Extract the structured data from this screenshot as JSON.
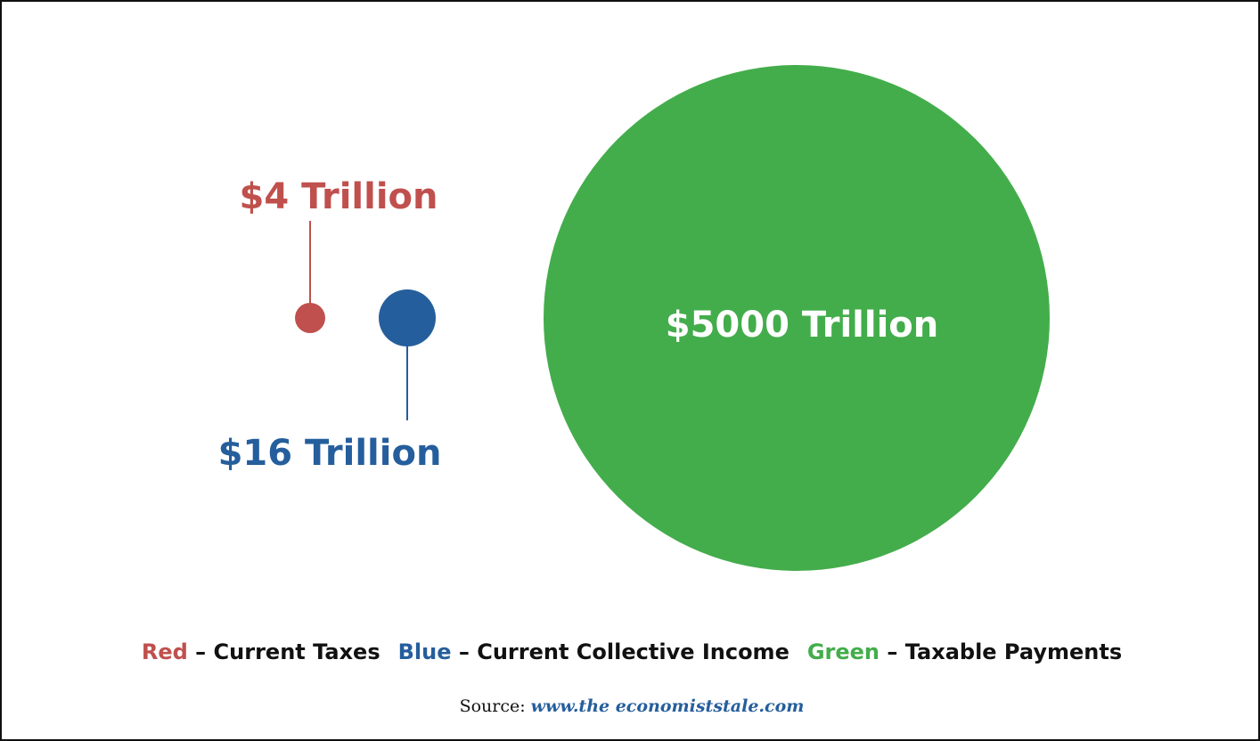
{
  "chart_data": {
    "type": "bubble",
    "title": "",
    "series": [
      {
        "label": "$4 Trillion",
        "value": 4,
        "color": "#c0504d",
        "legend_word": "Red",
        "legend_desc": " – Current Taxes"
      },
      {
        "label": "$16 Trillion",
        "value": 16,
        "color": "#255e9c",
        "legend_word": "Blue",
        "legend_desc": " – Current Collective Income"
      },
      {
        "label": "$5000 Trillion",
        "value": 5000,
        "color": "#43ad4b",
        "legend_word": "Green",
        "legend_desc": " – Taxable Payments"
      }
    ],
    "legend_placement": "bottom"
  },
  "source": {
    "label": "Source:",
    "link": "www.the economiststale.com",
    "link_color": "#255e9c"
  }
}
